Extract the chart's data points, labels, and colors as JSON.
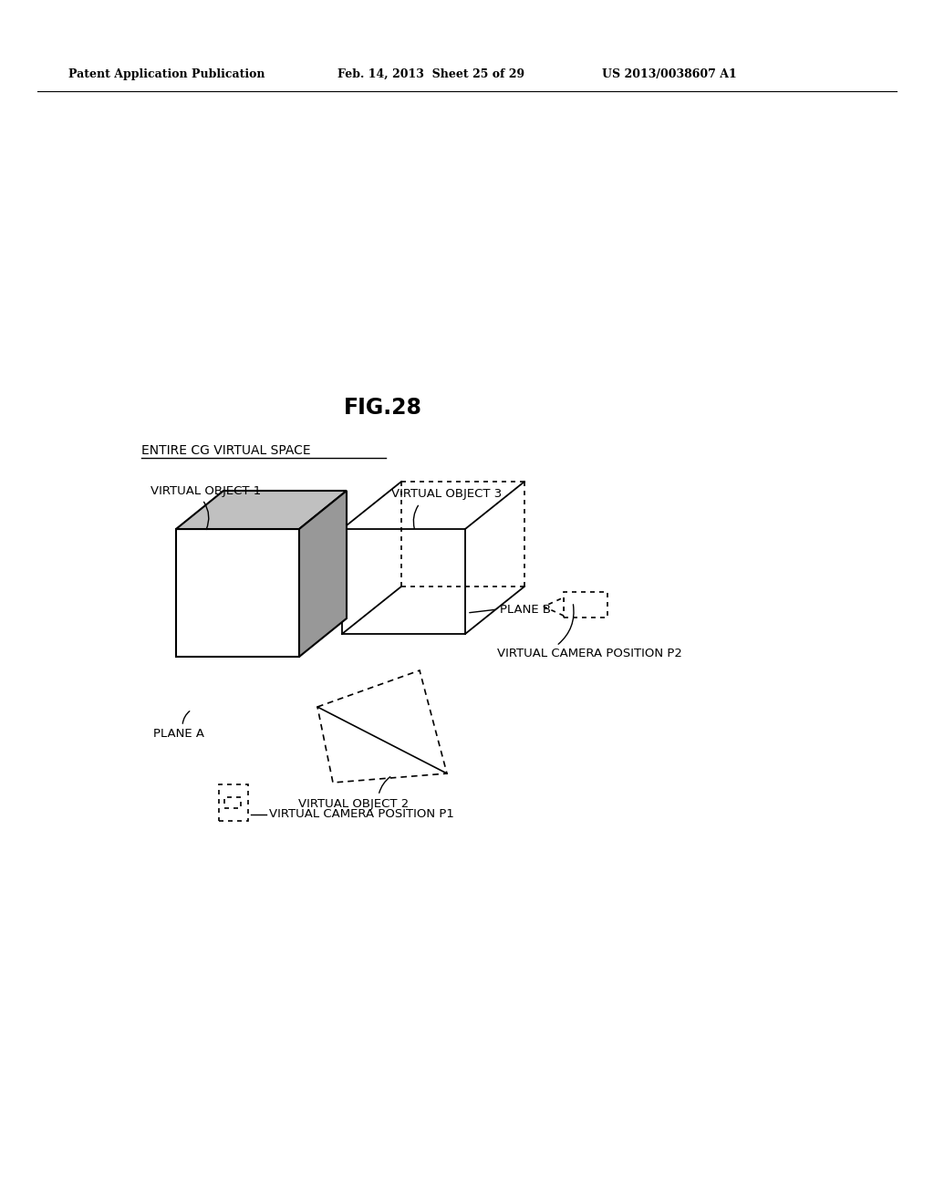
{
  "background_color": "#ffffff",
  "header_left": "Patent Application Publication",
  "header_mid": "Feb. 14, 2013  Sheet 25 of 29",
  "header_right": "US 2013/0038607 A1",
  "fig_title": "FIG.28",
  "label_entire_cg": "ENTIRE CG VIRTUAL SPACE",
  "label_vo1": "VIRTUAL OBJECT 1",
  "label_vo2": "VIRTUAL OBJECT 2",
  "label_vo3": "VIRTUAL OBJECT 3",
  "label_plane_a": "PLANE A",
  "label_plane_b": "PLANE B",
  "label_vcp1": "VIRTUAL CAMERA POSITION P1",
  "label_vcp2": "VIRTUAL CAMERA POSITION P2"
}
